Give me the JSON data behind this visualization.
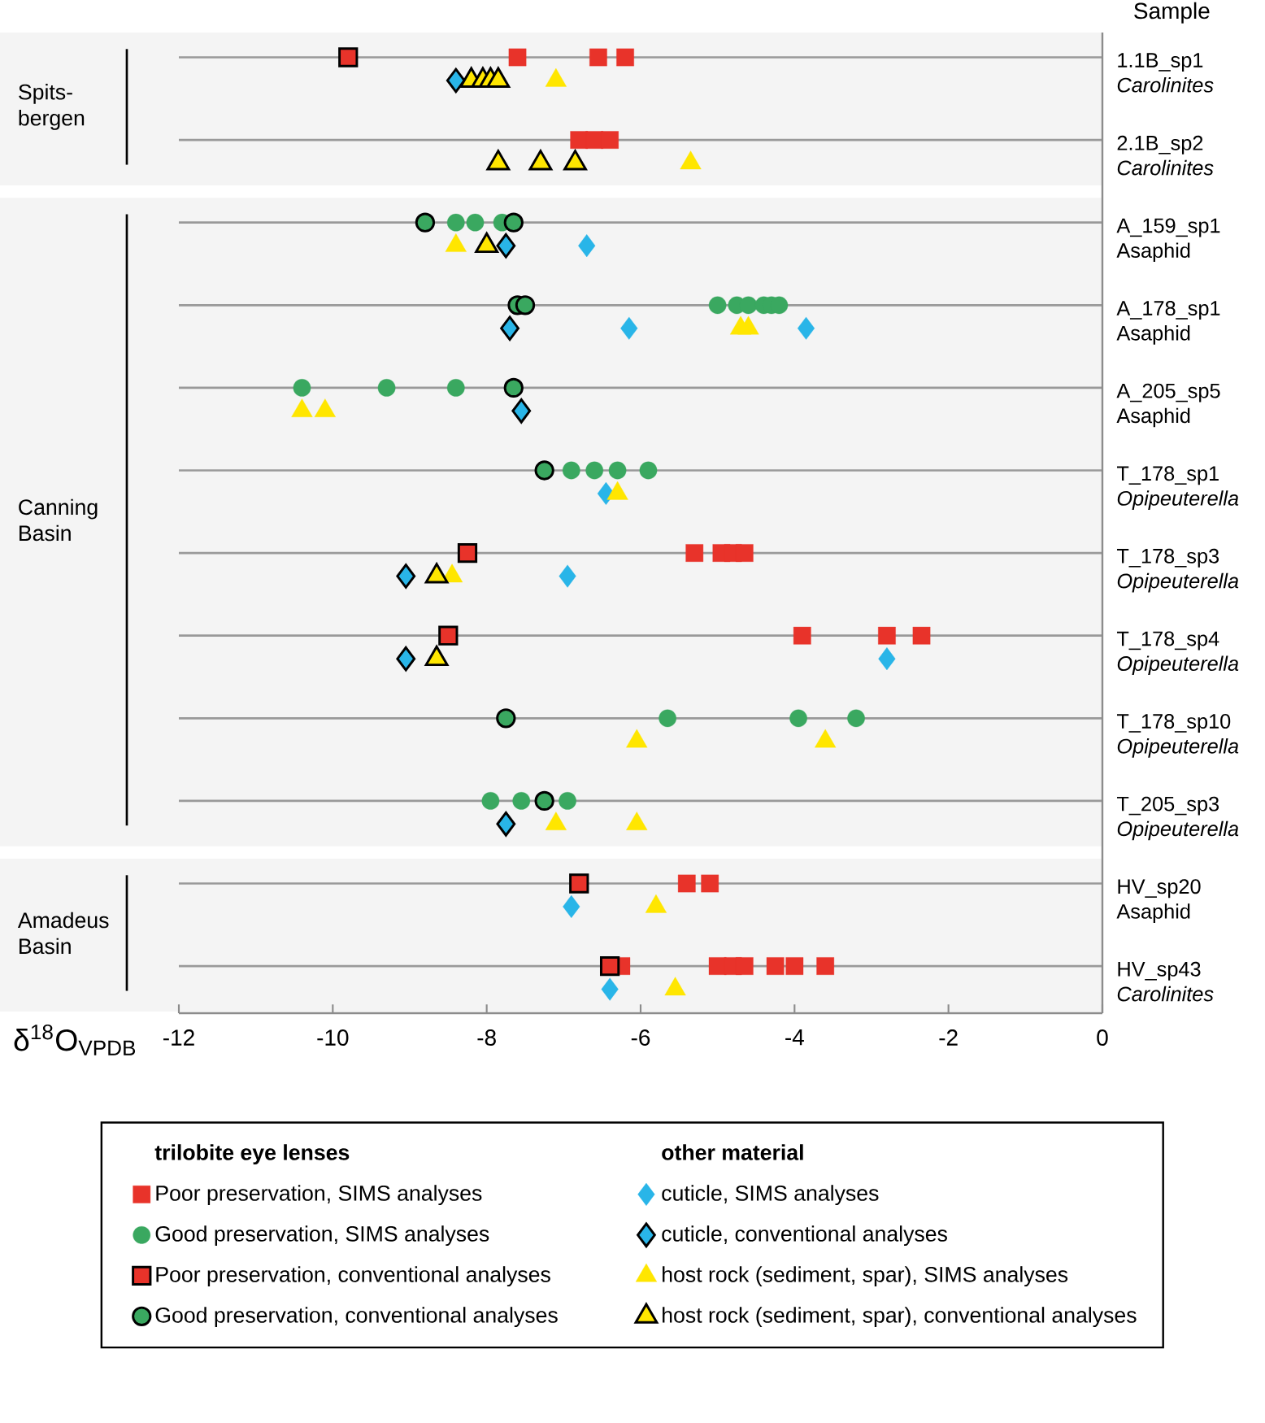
{
  "chart_data": {
    "type": "scatter",
    "orientation": "horizontal",
    "ylabel": "Sample",
    "xlabel": "δ$^{18}$O$_{VPDB}$",
    "legend_title": "trilobite eye lenses",
    "annotations": [
      "other material"
    ],
    "categories": [
      "1.1B_sp1 *Carolinites*",
      "2.1B_sp2 *Carolinites*",
      "A_159_sp1 Asaphid",
      "A_178_sp1 Asaphid",
      "A_205_sp5 Asaphid",
      "T_178_sp1 *Opipeuterella*",
      "T_178_sp3 *Opipeuterella*",
      "T_178_sp4 *Opipeuterella*",
      "T_178_sp10 *Opipeuterella*",
      "T_205_sp3 *Opipeuterella*",
      "HV_sp20 Asaphid",
      "HV_sp43 *Carolinites*"
    ],
    "xlim": [
      -12,
      0
    ],
    "xticks": [
      -12,
      -10,
      -8,
      -6,
      -4,
      -2,
      0
    ],
    "grid": "y",
    "legend": "bottom",
    "bands": [
      {
        "axis": "y",
        "from": "1.1B_sp1 *Carolinites*",
        "to": "2.1B_sp2 *Carolinites*",
        "label": "Spits-bergen",
        "color": "#f4f4f4"
      },
      {
        "axis": "y",
        "from": "A_159_sp1 Asaphid",
        "to": "T_205_sp3 *Opipeuterella*",
        "label": "Canning Basin",
        "color": "#f4f4f4"
      },
      {
        "axis": "y",
        "from": "HV_sp20 Asaphid",
        "to": "HV_sp43 *Carolinites*",
        "label": "Amadeus Basin",
        "color": "#f4f4f4"
      }
    ],
    "series": [
      {
        "name": "Poor preservation, SIMS analyses",
        "color": "#e8332a",
        "marker": "square",
        "x": [
          "1.1B_sp1 *Carolinites*",
          "1.1B_sp1 *Carolinites*",
          "1.1B_sp1 *Carolinites*",
          "2.1B_sp2 *Carolinites*",
          "2.1B_sp2 *Carolinites*",
          "2.1B_sp2 *Carolinites*",
          "T_178_sp3 *Opipeuterella*",
          "T_178_sp3 *Opipeuterella*",
          "T_178_sp3 *Opipeuterella*",
          "T_178_sp3 *Opipeuterella*",
          "T_178_sp4 *Opipeuterella*",
          "T_178_sp4 *Opipeuterella*",
          "T_178_sp4 *Opipeuterella*",
          "HV_sp20 Asaphid",
          "HV_sp20 Asaphid",
          "HV_sp43 *Carolinites*",
          "HV_sp43 *Carolinites*",
          "HV_sp43 *Carolinites*",
          "HV_sp43 *Carolinites*",
          "HV_sp43 *Carolinites*",
          "HV_sp43 *Carolinites*",
          "HV_sp43 *Carolinites*"
        ],
        "values": [
          -7.6,
          -6.55,
          -6.2,
          -6.8,
          -6.6,
          -6.4,
          -5.3,
          -4.95,
          -4.8,
          -4.65,
          -3.9,
          -2.8,
          -2.35,
          -5.4,
          -5.1,
          -6.25,
          -5.0,
          -4.8,
          -4.65,
          -4.25,
          -4.0,
          -3.6
        ]
      },
      {
        "name": "Good preservation, SIMS analyses",
        "color": "#3aa860",
        "marker": "circle",
        "x": [
          "A_159_sp1 Asaphid",
          "A_159_sp1 Asaphid",
          "A_159_sp1 Asaphid",
          "A_178_sp1 Asaphid",
          "A_178_sp1 Asaphid",
          "A_178_sp1 Asaphid",
          "A_178_sp1 Asaphid",
          "A_178_sp1 Asaphid",
          "A_178_sp1 Asaphid",
          "A_205_sp5 Asaphid",
          "A_205_sp5 Asaphid",
          "A_205_sp5 Asaphid",
          "T_178_sp1 *Opipeuterella*",
          "T_178_sp1 *Opipeuterella*",
          "T_178_sp1 *Opipeuterella*",
          "T_178_sp1 *Opipeuterella*",
          "T_178_sp10 *Opipeuterella*",
          "T_178_sp10 *Opipeuterella*",
          "T_178_sp10 *Opipeuterella*",
          "T_205_sp3 *Opipeuterella*",
          "T_205_sp3 *Opipeuterella*",
          "T_205_sp3 *Opipeuterella*"
        ],
        "values": [
          -8.4,
          -8.15,
          -7.8,
          -5.0,
          -4.75,
          -4.6,
          -4.4,
          -4.3,
          -4.2,
          -10.4,
          -9.3,
          -8.4,
          -6.9,
          -6.6,
          -6.3,
          -5.9,
          -5.65,
          -3.95,
          -3.2,
          -7.95,
          -7.55,
          -6.95
        ]
      },
      {
        "name": "Poor preservation, conventional analyses",
        "color": "#e8332a",
        "marker": "square",
        "x": [
          "1.1B_sp1 *Carolinites*",
          "T_178_sp3 *Opipeuterella*",
          "T_178_sp4 *Opipeuterella*",
          "HV_sp20 Asaphid",
          "HV_sp43 *Carolinites*"
        ],
        "values": [
          -9.8,
          -8.25,
          -8.5,
          -6.8,
          -6.4
        ]
      },
      {
        "name": "Good preservation, conventional analyses",
        "color": "#3aa860",
        "marker": "circle",
        "x": [
          "A_159_sp1 Asaphid",
          "A_159_sp1 Asaphid",
          "A_178_sp1 Asaphid",
          "A_178_sp1 Asaphid",
          "A_205_sp5 Asaphid",
          "T_178_sp1 *Opipeuterella*",
          "T_178_sp10 *Opipeuterella*",
          "T_205_sp3 *Opipeuterella*"
        ],
        "values": [
          -8.8,
          -7.65,
          -7.6,
          -7.5,
          -7.65,
          -7.25,
          -7.75,
          -7.25
        ]
      },
      {
        "name": "cuticle, SIMS analyses",
        "color": "#29b5e8",
        "marker": "diamond",
        "x": [
          "A_159_sp1 Asaphid",
          "A_178_sp1 Asaphid",
          "A_178_sp1 Asaphid",
          "T_178_sp1 *Opipeuterella*",
          "T_178_sp3 *Opipeuterella*",
          "T_178_sp4 *Opipeuterella*",
          "HV_sp20 Asaphid",
          "HV_sp43 *Carolinites*"
        ],
        "values": [
          -6.7,
          -6.15,
          -3.85,
          -6.45,
          -6.95,
          -2.8,
          -6.9,
          -6.4
        ]
      },
      {
        "name": "cuticle, conventional analyses",
        "color": "#29b5e8",
        "marker": "diamond",
        "x": [
          "1.1B_sp1 *Carolinites*",
          "A_159_sp1 Asaphid",
          "A_178_sp1 Asaphid",
          "A_205_sp5 Asaphid",
          "T_178_sp3 *Opipeuterella*",
          "T_178_sp4 *Opipeuterella*",
          "T_205_sp3 *Opipeuterella*"
        ],
        "values": [
          -8.4,
          -7.75,
          -7.7,
          -7.55,
          -9.05,
          -9.05,
          -7.75
        ]
      },
      {
        "name": "host rock (sediment, spar), SIMS analyses",
        "color": "#ffe600",
        "marker": "triangle",
        "x": [
          "1.1B_sp1 *Carolinites*",
          "2.1B_sp2 *Carolinites*",
          "A_159_sp1 Asaphid",
          "A_178_sp1 Asaphid",
          "A_178_sp1 Asaphid",
          "A_205_sp5 Asaphid",
          "A_205_sp5 Asaphid",
          "T_178_sp1 *Opipeuterella*",
          "T_178_sp3 *Opipeuterella*",
          "T_178_sp10 *Opipeuterella*",
          "T_178_sp10 *Opipeuterella*",
          "T_205_sp3 *Opipeuterella*",
          "T_205_sp3 *Opipeuterella*",
          "HV_sp20 Asaphid",
          "HV_sp43 *Carolinites*"
        ],
        "values": [
          -7.1,
          -5.35,
          -8.4,
          -4.7,
          -4.6,
          -10.4,
          -10.1,
          -6.3,
          -8.45,
          -6.05,
          -3.6,
          -7.1,
          -6.05,
          -5.8,
          -5.55
        ]
      },
      {
        "name": "host rock (sediment, spar), conventional analyses",
        "color": "#ffe600",
        "marker": "triangle",
        "x": [
          "1.1B_sp1 *Carolinites*",
          "1.1B_sp1 *Carolinites*",
          "1.1B_sp1 *Carolinites*",
          "1.1B_sp1 *Carolinites*",
          "2.1B_sp2 *Carolinites*",
          "2.1B_sp2 *Carolinites*",
          "2.1B_sp2 *Carolinites*",
          "A_159_sp1 Asaphid",
          "T_178_sp3 *Opipeuterella*",
          "T_178_sp4 *Opipeuterella*"
        ],
        "values": [
          -8.2,
          -8.05,
          -7.95,
          -7.85,
          -7.85,
          -7.3,
          -6.85,
          -8.0,
          -8.65,
          -8.65
        ]
      }
    ]
  }
}
